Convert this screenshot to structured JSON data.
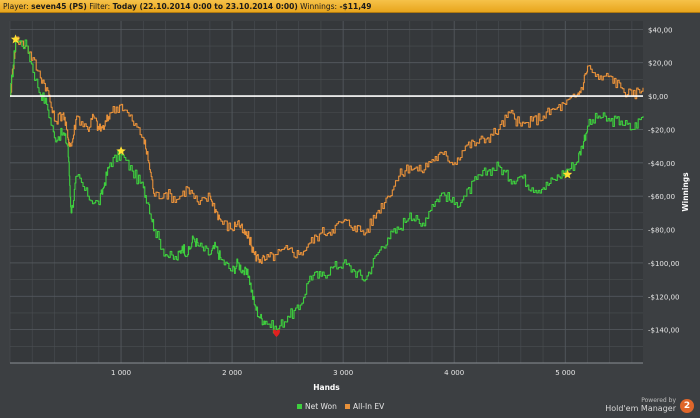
{
  "header": {
    "player_label": "Player:",
    "player": "seven45 (PS)",
    "filter_label": "Filter:",
    "filter": "Today (22.10.2014 0:00 to 23.10.2014 0:00)",
    "winnings_label": "Winnings:",
    "winnings": "-$11,49"
  },
  "brand": {
    "powered": "Powered by",
    "name": "Hold'em Manager",
    "version": "2"
  },
  "colors": {
    "net_won": "#3ecf3e",
    "allin_ev": "#e8913a",
    "zero_line": "#ffffff",
    "header_bg": "#f0b42e"
  },
  "chart_data": {
    "type": "line",
    "xlabel": "Hands",
    "ylabel": "Winnings",
    "xlim": [
      0,
      5700
    ],
    "ylim": [
      -160,
      45
    ],
    "x_ticks": [
      {
        "v": 1000,
        "label": "1 000"
      },
      {
        "v": 2000,
        "label": "2 000"
      },
      {
        "v": 3000,
        "label": "3 000"
      },
      {
        "v": 4000,
        "label": "4 000"
      },
      {
        "v": 5000,
        "label": "5 000"
      }
    ],
    "y_ticks": [
      {
        "v": 40,
        "label": "$40,00"
      },
      {
        "v": 20,
        "label": "$20,00"
      },
      {
        "v": 0,
        "label": "$0,00"
      },
      {
        "v": -20,
        "label": "-$20,00"
      },
      {
        "v": -40,
        "label": "-$40,00"
      },
      {
        "v": -60,
        "label": "-$60,00"
      },
      {
        "v": -80,
        "label": "-$80,00"
      },
      {
        "v": -100,
        "label": "-$100,00"
      },
      {
        "v": -120,
        "label": "-$120,00"
      },
      {
        "v": -140,
        "label": "-$140,00"
      }
    ],
    "legend_position": "bottom-center",
    "series": [
      {
        "name": "Net Won",
        "color": "#3ecf3e",
        "points": [
          [
            0,
            0
          ],
          [
            50,
            34
          ],
          [
            150,
            30
          ],
          [
            250,
            5
          ],
          [
            330,
            -5
          ],
          [
            400,
            -25
          ],
          [
            480,
            -22
          ],
          [
            520,
            -30
          ],
          [
            550,
            -70
          ],
          [
            600,
            -48
          ],
          [
            700,
            -60
          ],
          [
            800,
            -65
          ],
          [
            850,
            -52
          ],
          [
            900,
            -40
          ],
          [
            1000,
            -35
          ],
          [
            1100,
            -45
          ],
          [
            1200,
            -55
          ],
          [
            1250,
            -65
          ],
          [
            1300,
            -80
          ],
          [
            1400,
            -95
          ],
          [
            1500,
            -98
          ],
          [
            1550,
            -90
          ],
          [
            1600,
            -95
          ],
          [
            1650,
            -85
          ],
          [
            1700,
            -90
          ],
          [
            1800,
            -95
          ],
          [
            1850,
            -90
          ],
          [
            1900,
            -98
          ],
          [
            2000,
            -105
          ],
          [
            2050,
            -100
          ],
          [
            2100,
            -105
          ],
          [
            2150,
            -108
          ],
          [
            2200,
            -125
          ],
          [
            2250,
            -133
          ],
          [
            2300,
            -135
          ],
          [
            2400,
            -140
          ],
          [
            2500,
            -132
          ],
          [
            2600,
            -128
          ],
          [
            2700,
            -108
          ],
          [
            2800,
            -108
          ],
          [
            2900,
            -103
          ],
          [
            3000,
            -100
          ],
          [
            3100,
            -105
          ],
          [
            3200,
            -110
          ],
          [
            3300,
            -95
          ],
          [
            3400,
            -85
          ],
          [
            3500,
            -80
          ],
          [
            3600,
            -70
          ],
          [
            3700,
            -78
          ],
          [
            3800,
            -65
          ],
          [
            3900,
            -58
          ],
          [
            4000,
            -65
          ],
          [
            4100,
            -60
          ],
          [
            4200,
            -50
          ],
          [
            4300,
            -45
          ],
          [
            4400,
            -42
          ],
          [
            4500,
            -50
          ],
          [
            4600,
            -48
          ],
          [
            4700,
            -55
          ],
          [
            4800,
            -55
          ],
          [
            4900,
            -50
          ],
          [
            5000,
            -45
          ],
          [
            5100,
            -40
          ],
          [
            5150,
            -30
          ],
          [
            5200,
            -18
          ],
          [
            5300,
            -12
          ],
          [
            5400,
            -15
          ],
          [
            5500,
            -15
          ],
          [
            5600,
            -20
          ],
          [
            5700,
            -12
          ]
        ]
      },
      {
        "name": "All-In EV",
        "color": "#e8913a",
        "points": [
          [
            0,
            0
          ],
          [
            50,
            34
          ],
          [
            150,
            30
          ],
          [
            250,
            15
          ],
          [
            330,
            5
          ],
          [
            400,
            -15
          ],
          [
            480,
            -10
          ],
          [
            520,
            -25
          ],
          [
            550,
            -30
          ],
          [
            600,
            -12
          ],
          [
            700,
            -20
          ],
          [
            750,
            -12
          ],
          [
            800,
            -20
          ],
          [
            850,
            -18
          ],
          [
            900,
            -10
          ],
          [
            1000,
            -5
          ],
          [
            1100,
            -15
          ],
          [
            1200,
            -25
          ],
          [
            1250,
            -40
          ],
          [
            1300,
            -60
          ],
          [
            1400,
            -58
          ],
          [
            1500,
            -62
          ],
          [
            1600,
            -55
          ],
          [
            1700,
            -65
          ],
          [
            1800,
            -60
          ],
          [
            1850,
            -68
          ],
          [
            1900,
            -75
          ],
          [
            2000,
            -80
          ],
          [
            2050,
            -75
          ],
          [
            2100,
            -82
          ],
          [
            2150,
            -85
          ],
          [
            2200,
            -95
          ],
          [
            2250,
            -98
          ],
          [
            2300,
            -98
          ],
          [
            2400,
            -95
          ],
          [
            2500,
            -92
          ],
          [
            2600,
            -95
          ],
          [
            2700,
            -88
          ],
          [
            2800,
            -82
          ],
          [
            2900,
            -80
          ],
          [
            3000,
            -75
          ],
          [
            3100,
            -78
          ],
          [
            3200,
            -82
          ],
          [
            3300,
            -70
          ],
          [
            3400,
            -60
          ],
          [
            3500,
            -48
          ],
          [
            3600,
            -42
          ],
          [
            3700,
            -45
          ],
          [
            3800,
            -38
          ],
          [
            3900,
            -35
          ],
          [
            4000,
            -40
          ],
          [
            4100,
            -30
          ],
          [
            4200,
            -28
          ],
          [
            4300,
            -25
          ],
          [
            4400,
            -20
          ],
          [
            4500,
            -10
          ],
          [
            4600,
            -18
          ],
          [
            4700,
            -15
          ],
          [
            4800,
            -12
          ],
          [
            4900,
            -8
          ],
          [
            5000,
            -5
          ],
          [
            5100,
            0
          ],
          [
            5150,
            5
          ],
          [
            5200,
            18
          ],
          [
            5300,
            10
          ],
          [
            5400,
            12
          ],
          [
            5500,
            5
          ],
          [
            5600,
            0
          ],
          [
            5700,
            5
          ]
        ]
      }
    ],
    "markers": [
      {
        "type": "star",
        "color": "#ffe033",
        "x": 50,
        "y": 34
      },
      {
        "type": "star",
        "color": "#ffe033",
        "x": 1000,
        "y": -33
      },
      {
        "type": "star",
        "color": "#ffe033",
        "x": 5020,
        "y": -47
      },
      {
        "type": "heart",
        "color": "#e02020",
        "x": 2400,
        "y": -142
      }
    ]
  }
}
